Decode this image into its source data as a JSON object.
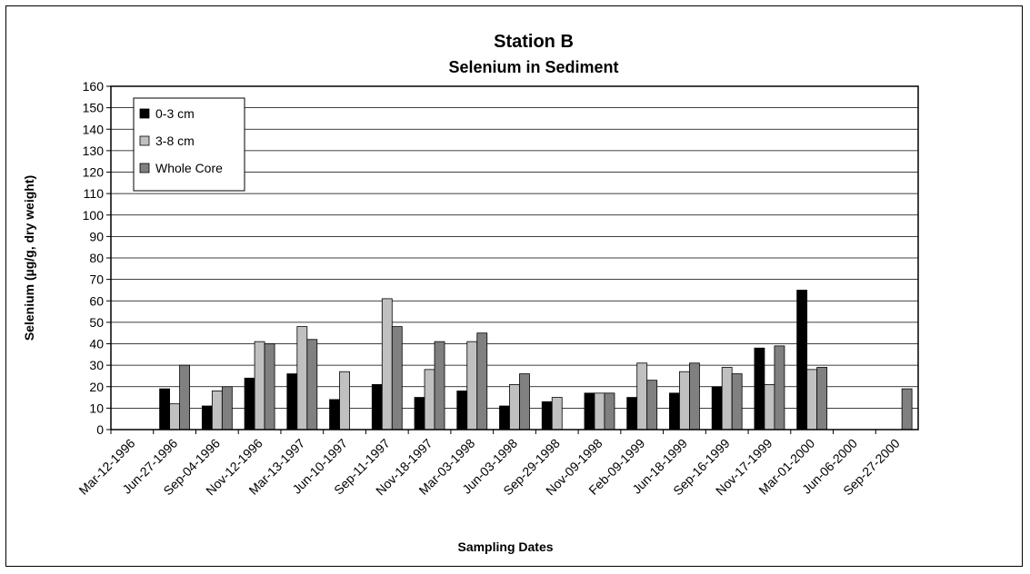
{
  "chart_data": {
    "type": "bar",
    "title": "Station B",
    "subtitle": "Selenium in Sediment",
    "xlabel": "Sampling Dates",
    "ylabel": "Selenium (µg/g, dry weight)",
    "ylim": [
      0,
      160
    ],
    "yticks": [
      0,
      10,
      20,
      30,
      40,
      50,
      60,
      70,
      80,
      90,
      100,
      110,
      120,
      130,
      140,
      150,
      160
    ],
    "grid": true,
    "legend_position": "top-left",
    "categories": [
      "Mar-12-1996",
      "Jun-27-1996",
      "Sep-04-1996",
      "Nov-12-1996",
      "Mar-13-1997",
      "Jun-10-1997",
      "Sep-11-1997",
      "Nov-18-1997",
      "Mar-03-1998",
      "Jun-03-1998",
      "Sep-29-1998",
      "Nov-09-1998",
      "Feb-09-1999",
      "Jun-18-1999",
      "Sep-16-1999",
      "Nov-17-1999",
      "Mar-01-2000",
      "Jun-06-2000",
      "Sep-27-2000"
    ],
    "series": [
      {
        "name": "0-3 cm",
        "color": "#000000",
        "values": [
          0,
          19,
          11,
          24,
          26,
          14,
          21,
          15,
          18,
          11,
          13,
          17,
          15,
          17,
          20,
          38,
          65,
          0,
          0
        ]
      },
      {
        "name": "3-8 cm",
        "color": "#c0c0c0",
        "values": [
          0,
          12,
          18,
          41,
          48,
          27,
          61,
          28,
          41,
          21,
          15,
          17,
          31,
          27,
          29,
          21,
          28,
          0,
          0
        ]
      },
      {
        "name": "Whole Core",
        "color": "#808080",
        "values": [
          0,
          30,
          20,
          40,
          42,
          0,
          48,
          41,
          45,
          26,
          0,
          17,
          23,
          31,
          26,
          39,
          29,
          0,
          19
        ]
      }
    ]
  }
}
